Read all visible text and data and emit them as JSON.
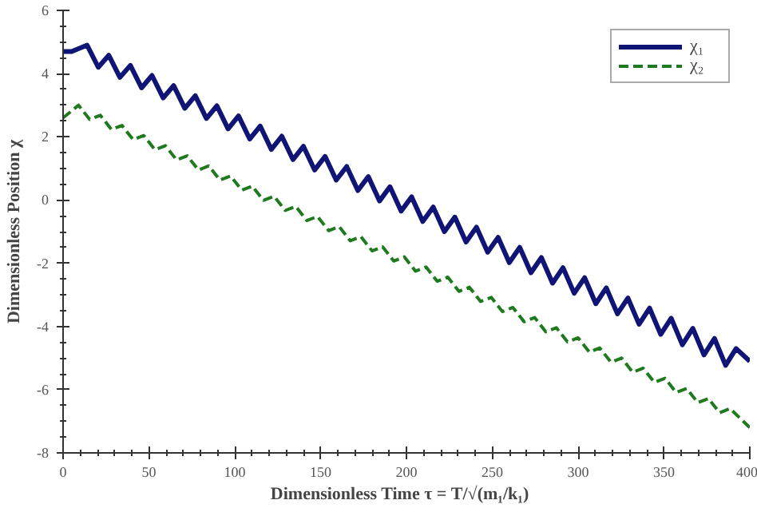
{
  "chart_data": {
    "type": "line",
    "xlabel": "Dimensionless Time    τ = T/√(m₁/k₁)",
    "ylabel": "Dimensionless Position χ",
    "xlim": [
      0,
      400
    ],
    "ylim": [
      -8,
      6
    ],
    "xticks": [
      0,
      50,
      100,
      150,
      200,
      250,
      300,
      350,
      400
    ],
    "yticks": [
      -8,
      -6,
      -4,
      -2,
      0,
      2,
      4,
      6
    ],
    "grid": false,
    "legend": "top right",
    "series": [
      {
        "name": "χ₁",
        "color": "#101475",
        "line_style": "solid",
        "x": [
          0,
          5,
          14,
          20.5,
          26.6,
          33.1,
          39.2,
          45.7,
          51.8,
          58.3,
          64.4,
          70.9,
          77,
          83.5,
          89.6,
          96.1,
          102.2,
          108.7,
          114.8,
          121.3,
          127.4,
          133.9,
          140,
          146.5,
          152.6,
          159.1,
          165.2,
          171.7,
          177.8,
          184.3,
          190.4,
          196.9,
          203,
          209.5,
          215.6,
          222.1,
          228.2,
          234.7,
          240.8,
          247.3,
          253.4,
          259.9,
          266,
          272.5,
          278.6,
          285.1,
          291.2,
          297.7,
          303.8,
          310.3,
          316.4,
          322.9,
          329,
          335.5,
          341.6,
          348.1,
          354.2,
          360.7,
          366.8,
          373.3,
          379.4,
          385.9,
          392,
          400
        ],
        "values": [
          4.7,
          4.7,
          4.9,
          4.2,
          4.58,
          3.88,
          4.26,
          3.55,
          3.94,
          3.23,
          3.62,
          2.9,
          3.3,
          2.58,
          2.98,
          2.25,
          2.66,
          1.93,
          2.34,
          1.6,
          2.02,
          1.28,
          1.7,
          0.95,
          1.38,
          0.63,
          1.06,
          0.3,
          0.74,
          -0.03,
          0.42,
          -0.35,
          0.1,
          -0.68,
          -0.22,
          -1.0,
          -0.54,
          -1.33,
          -0.86,
          -1.65,
          -1.18,
          -1.98,
          -1.5,
          -2.3,
          -1.82,
          -2.63,
          -2.14,
          -2.95,
          -2.46,
          -3.28,
          -2.78,
          -3.6,
          -3.1,
          -3.93,
          -3.42,
          -4.25,
          -3.74,
          -4.58,
          -4.06,
          -4.9,
          -4.38,
          -5.23,
          -4.7,
          -5.1
        ]
      },
      {
        "name": "χ₂",
        "color": "#1f7a1f",
        "line_style": "dashed",
        "x": [
          0,
          9,
          15.5,
          21.7,
          28.2,
          34.3,
          40.8,
          47,
          53.5,
          59.6,
          66.1,
          72.3,
          78.8,
          84.9,
          91.4,
          97.6,
          104.1,
          110.2,
          116.7,
          122.9,
          129.4,
          135.5,
          142,
          148.2,
          154.7,
          160.8,
          167.3,
          173.5,
          180,
          186.1,
          192.6,
          198.8,
          205.3,
          211.4,
          217.9,
          224.1,
          230.6,
          236.7,
          243.2,
          249.4,
          255.9,
          262,
          268.5,
          274.7,
          281.2,
          287.3,
          293.8,
          300,
          306.5,
          312.6,
          319.1,
          325.3,
          331.8,
          337.9,
          344.4,
          350.6,
          357.1,
          363.2,
          369.7,
          375.9,
          382.4,
          388.5,
          400
        ],
        "values": [
          2.6,
          3.0,
          2.55,
          2.68,
          2.23,
          2.36,
          1.91,
          2.04,
          1.59,
          1.72,
          1.27,
          1.4,
          0.95,
          1.08,
          0.63,
          0.76,
          0.31,
          0.44,
          -0.01,
          0.12,
          -0.33,
          -0.2,
          -0.65,
          -0.52,
          -0.97,
          -0.84,
          -1.29,
          -1.16,
          -1.61,
          -1.48,
          -1.93,
          -1.8,
          -2.25,
          -2.12,
          -2.57,
          -2.44,
          -2.89,
          -2.76,
          -3.21,
          -3.08,
          -3.53,
          -3.4,
          -3.85,
          -3.72,
          -4.17,
          -4.04,
          -4.49,
          -4.36,
          -4.81,
          -4.68,
          -5.13,
          -5.0,
          -5.45,
          -5.32,
          -5.77,
          -5.64,
          -6.09,
          -5.96,
          -6.41,
          -6.28,
          -6.73,
          -6.6,
          -7.2
        ]
      }
    ]
  }
}
